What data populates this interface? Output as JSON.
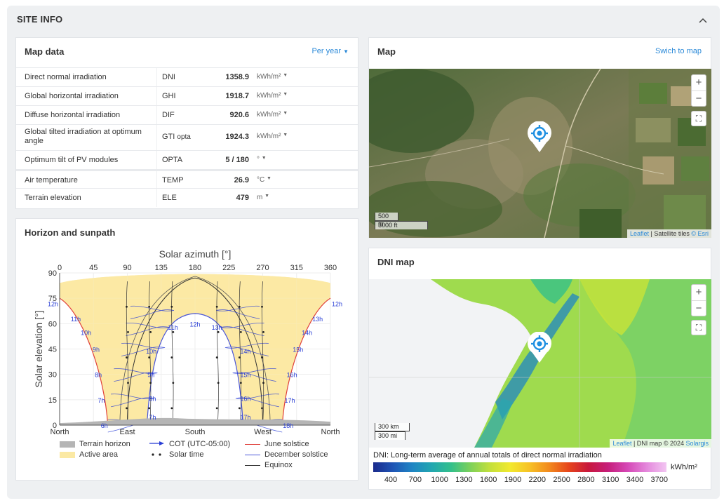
{
  "section": {
    "title": "SITE INFO",
    "collapse_icon": "chevron-up-icon"
  },
  "map_data": {
    "title": "Map data",
    "period_select": "Per year",
    "rows": [
      {
        "name": "Direct normal irradiation",
        "abbr": "DNI",
        "abbr_sub": "",
        "value": "1358.9",
        "unit": "kWh/m²"
      },
      {
        "name": "Global horizontal irradiation",
        "abbr": "GHI",
        "abbr_sub": "",
        "value": "1918.7",
        "unit": "kWh/m²"
      },
      {
        "name": "Diffuse horizontal irradiation",
        "abbr": "DIF",
        "abbr_sub": "",
        "value": "920.6",
        "unit": "kWh/m²"
      },
      {
        "name": "Global tilted irradiation at optimum angle",
        "abbr": "GTI",
        "abbr_sub": "opta",
        "value": "1924.3",
        "unit": "kWh/m²"
      },
      {
        "name": "Optimum tilt of PV modules",
        "abbr": "OPTA",
        "abbr_sub": "",
        "value": "5 /  180",
        "unit": "°"
      },
      {
        "name": "Air temperature",
        "abbr": "TEMP",
        "abbr_sub": "",
        "value": "26.9",
        "unit": "°C"
      },
      {
        "name": "Terrain elevation",
        "abbr": "ELE",
        "abbr_sub": "",
        "value": "479",
        "unit": "m"
      }
    ]
  },
  "map": {
    "title": "Map",
    "switch_link": "Swich to map",
    "zoom_in": "+",
    "zoom_out": "−",
    "scale_m": "500 m",
    "scale_ft": "3000 ft",
    "attrib_leaflet": "Leaflet",
    "attrib_sep": " | Satellite tiles ",
    "attrib_esri": "© Esri"
  },
  "dni_map": {
    "title": "DNI map",
    "zoom_in": "+",
    "zoom_out": "−",
    "scale_km": "300 km",
    "scale_mi": "300 mi",
    "attrib_leaflet": "Leaflet",
    "attrib_sep": " | DNI map © 2024 ",
    "attrib_solargis": "Solargis",
    "caption": "DNI: Long-term average of annual totals of direct normal irradiation",
    "unit": "kWh/m²",
    "ticks": [
      "400",
      "700",
      "1000",
      "1300",
      "1600",
      "1900",
      "2200",
      "2500",
      "2800",
      "3100",
      "3400",
      "3700"
    ],
    "colors": [
      "#1a2a8c",
      "#1f55b5",
      "#1f85c4",
      "#22a7b0",
      "#34c08a",
      "#7fd158",
      "#c5e03b",
      "#f2e92f",
      "#f7c126",
      "#f28a1e",
      "#e6451b",
      "#c8183c",
      "#c61e7a",
      "#d548b6",
      "#e488dc",
      "#f2c6f2"
    ]
  },
  "sunpath": {
    "title": "Horizon and sunpath",
    "x_title": "Solar azimuth [°]",
    "y_title": "Solar elevation [°]",
    "x_ticks": [
      "0",
      "45",
      "90",
      "135",
      "180",
      "225",
      "270",
      "315",
      "360"
    ],
    "y_ticks": [
      "0",
      "15",
      "30",
      "45",
      "60",
      "75",
      "90"
    ],
    "compass": [
      "North",
      "East",
      "South",
      "West",
      "North"
    ],
    "hour_labels_am": [
      "6h",
      "7h",
      "8h",
      "9h",
      "10h",
      "11h",
      "12h"
    ],
    "hour_labels_pm": [
      "12h",
      "13h",
      "14h",
      "15h",
      "16h",
      "17h",
      "18h"
    ],
    "noon_low_labels": [
      "11h",
      "12h",
      "13h"
    ],
    "legend": {
      "terrain": "Terrain horizon",
      "active": "Active area",
      "cot": "COT (UTC-05:00)",
      "solar_time": "Solar time",
      "june": "June solstice",
      "december": "December solstice",
      "equinox": "Equinox"
    },
    "colors": {
      "june": "#e0403a",
      "december": "#4a56d8",
      "equinox": "#333333",
      "active": "#fbe9a4",
      "terrain": "#b5b5b5",
      "cot": "#2a3fd6"
    }
  }
}
